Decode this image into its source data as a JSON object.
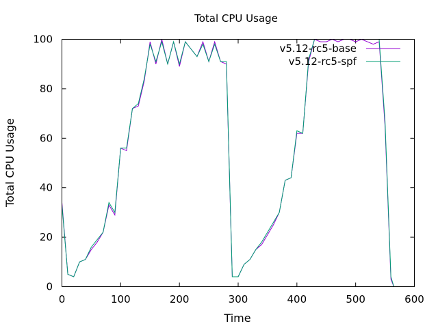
{
  "chart_data": {
    "type": "line",
    "title": "Total CPU Usage",
    "xlabel": "Time",
    "ylabel": "Total CPU Usage",
    "xlim": [
      0,
      600
    ],
    "ylim": [
      0,
      100
    ],
    "xticks": [
      0,
      100,
      200,
      300,
      400,
      500,
      600
    ],
    "yticks": [
      0,
      20,
      40,
      60,
      80,
      100
    ],
    "grid": false,
    "legend_position": "top-right",
    "series": [
      {
        "name": "v5.12-rc5-base",
        "color": "#9400d3",
        "x": [
          0,
          10,
          20,
          30,
          40,
          50,
          60,
          70,
          80,
          90,
          100,
          110,
          120,
          130,
          140,
          150,
          160,
          170,
          180,
          190,
          200,
          210,
          220,
          230,
          240,
          250,
          260,
          270,
          280,
          290,
          300,
          310,
          320,
          330,
          340,
          350,
          360,
          370,
          380,
          390,
          400,
          410,
          420,
          430,
          440,
          450,
          460,
          470,
          480,
          490,
          500,
          510,
          520,
          530,
          540,
          550,
          560,
          565
        ],
        "y": [
          34,
          5,
          4,
          10,
          11,
          15,
          18,
          22,
          33,
          29,
          56,
          55,
          72,
          73,
          83,
          99,
          90,
          100,
          90,
          99,
          89,
          99,
          96,
          93,
          99,
          91,
          99,
          91,
          90,
          4,
          4,
          9,
          11,
          15,
          17,
          21,
          25,
          30,
          43,
          44,
          62,
          62,
          91,
          100,
          99,
          99,
          100,
          99,
          100,
          100,
          99,
          100,
          99,
          98,
          99,
          65,
          3,
          0
        ]
      },
      {
        "name": "v5.12-rc5-spf",
        "color": "#009e73",
        "x": [
          0,
          10,
          20,
          30,
          40,
          50,
          60,
          70,
          80,
          90,
          100,
          110,
          120,
          130,
          140,
          150,
          160,
          170,
          180,
          190,
          200,
          210,
          220,
          230,
          240,
          250,
          260,
          270,
          280,
          290,
          300,
          310,
          320,
          330,
          340,
          350,
          360,
          370,
          380,
          390,
          400,
          410,
          420,
          430,
          440,
          450,
          460,
          470,
          480,
          490,
          500,
          510,
          520,
          530,
          540,
          550,
          560,
          565
        ],
        "y": [
          33,
          5,
          4,
          10,
          11,
          16,
          19,
          22,
          34,
          30,
          56,
          56,
          72,
          74,
          84,
          98,
          91,
          99,
          90,
          99,
          90,
          99,
          96,
          93,
          98,
          91,
          98,
          91,
          91,
          4,
          4,
          9,
          11,
          15,
          18,
          22,
          26,
          30,
          43,
          44,
          63,
          62,
          92,
          100,
          100,
          100,
          100,
          100,
          101,
          100,
          100,
          101,
          100,
          100,
          100,
          67,
          4,
          0
        ]
      }
    ]
  }
}
